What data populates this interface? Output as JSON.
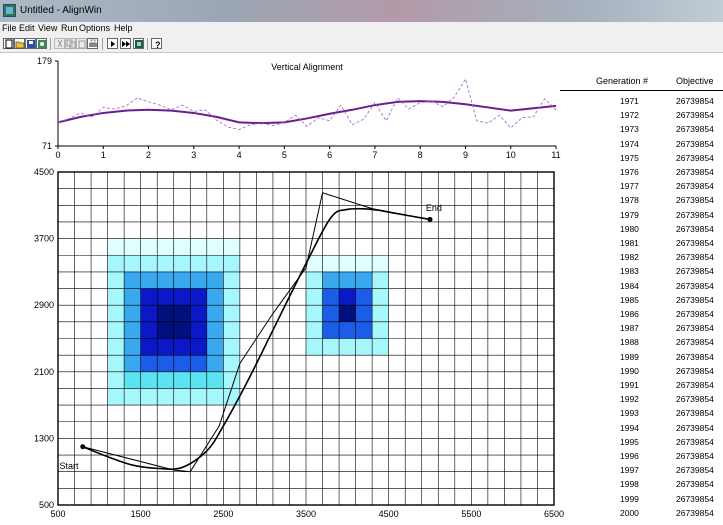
{
  "window": {
    "title": "Untitled - AlignWin"
  },
  "menu": [
    "File",
    "Edit",
    "View",
    "Run",
    "Options",
    "Help"
  ],
  "toolbar": [
    {
      "icon": "new-file-icon",
      "enabled": true
    },
    {
      "icon": "open-folder-icon",
      "enabled": true
    },
    {
      "icon": "save-icon",
      "enabled": true
    },
    {
      "icon": "view-icon",
      "enabled": true
    },
    {
      "icon": "cut-icon",
      "enabled": false
    },
    {
      "icon": "copy-icon",
      "enabled": false
    },
    {
      "icon": "paste-icon",
      "enabled": false
    },
    {
      "icon": "print-icon",
      "enabled": true
    },
    {
      "icon": "run-icon",
      "enabled": true
    },
    {
      "icon": "fast-forward-icon",
      "enabled": true
    },
    {
      "icon": "results-icon",
      "enabled": true
    },
    {
      "icon": "help-icon",
      "enabled": true
    }
  ],
  "chart_data": [
    {
      "type": "line",
      "title": "Vertical Alignment",
      "xlabel": "",
      "ylabel": "",
      "xlim": [
        0,
        11
      ],
      "ylim": [
        71,
        179
      ],
      "xticks": [
        0,
        1,
        2,
        3,
        4,
        5,
        6,
        7,
        8,
        9,
        10,
        11
      ],
      "yticks_labeled": [
        71,
        179
      ],
      "grid": false,
      "series": [
        {
          "style": "solid",
          "color": "#6a1e8c",
          "x": [
            0,
            0.5,
            1,
            1.5,
            2,
            2.5,
            3,
            3.5,
            4,
            4.5,
            5,
            5.5,
            6,
            6.5,
            7,
            7.5,
            8,
            8.5,
            9,
            9.5,
            10,
            10.5,
            11
          ],
          "y": [
            101,
            108,
            113,
            116,
            117,
            116,
            113,
            108,
            101,
            100,
            101,
            106,
            112,
            117,
            123,
            127,
            128,
            127,
            124,
            120,
            116,
            119,
            122
          ]
        },
        {
          "style": "dashed",
          "color": "#a060c8",
          "x": [
            0,
            0.25,
            0.5,
            0.75,
            1,
            1.25,
            1.5,
            1.75,
            2,
            2.25,
            2.5,
            2.75,
            3,
            3.25,
            3.5,
            3.75,
            4,
            4.25,
            4.5,
            4.75,
            5,
            5.25,
            5.5,
            5.75,
            6,
            6.25,
            6.5,
            6.75,
            7,
            7.25,
            7.5,
            7.75,
            8,
            8.25,
            8.5,
            8.75,
            9,
            9.25,
            9.5,
            9.75,
            10,
            10.25,
            10.5,
            10.75,
            11
          ],
          "y": [
            101,
            106,
            113,
            108,
            120,
            118,
            122,
            132,
            127,
            123,
            117,
            123,
            115,
            117,
            104,
            95,
            92,
            98,
            100,
            97,
            101,
            110,
            96,
            107,
            103,
            123,
            98,
            105,
            126,
            103,
            132,
            118,
            126,
            128,
            121,
            133,
            156,
            103,
            100,
            110,
            94,
            107,
            108,
            131,
            117
          ]
        }
      ]
    },
    {
      "type": "heatmap",
      "xlim": [
        500,
        6500
      ],
      "ylim": [
        500,
        4500
      ],
      "xticks": [
        500,
        1500,
        2500,
        3500,
        4500,
        5500,
        6500
      ],
      "yticks": [
        500,
        1300,
        2100,
        2900,
        3700,
        4500
      ],
      "grid": true,
      "grid_cell": 200,
      "colors": [
        "#e0ffff",
        "#a6f7fb",
        "#5ce3f0",
        "#3aa8ee",
        "#1b5de8",
        "#0a18c8",
        "#02107e",
        "#000850"
      ],
      "hotspots": [
        {
          "x": 1900,
          "y": 2650,
          "amplitude": 7.8,
          "radius_x": 900,
          "radius_y": 1000
        },
        {
          "x": 4000,
          "y": 2850,
          "amplitude": 7.3,
          "radius_x": 500,
          "radius_y": 600
        }
      ],
      "labels": [
        {
          "text": "Start",
          "x": 700,
          "y": 1050
        },
        {
          "text": "End",
          "x": 4950,
          "y": 4030
        }
      ],
      "series": [
        {
          "name": "",
          "style": "smooth",
          "color": "#000000",
          "x": [
            800,
            1100,
            1400,
            1700,
            2000,
            2300,
            2500,
            2800,
            3100,
            3500,
            3800,
            4000,
            4300,
            4600,
            5000
          ],
          "y": [
            1200,
            1080,
            980,
            940,
            950,
            1150,
            1450,
            2000,
            2600,
            3400,
            3950,
            4050,
            4050,
            4000,
            3930
          ]
        },
        {
          "name": "",
          "style": "polyline",
          "color": "#000000",
          "x": [
            800,
            1900,
            2100,
            2450,
            2700,
            3100,
            3500,
            3700,
            4300,
            5000
          ],
          "y": [
            1200,
            920,
            900,
            1450,
            2200,
            2800,
            3350,
            4250,
            4060,
            3930
          ]
        }
      ]
    }
  ],
  "table": {
    "headers": {
      "generation": "Generation #",
      "objective": "Objective"
    },
    "rows": [
      {
        "generation": "1971",
        "objective": "26739854"
      },
      {
        "generation": "1972",
        "objective": "26739854"
      },
      {
        "generation": "1973",
        "objective": "26739854"
      },
      {
        "generation": "1974",
        "objective": "26739854"
      },
      {
        "generation": "1975",
        "objective": "26739854"
      },
      {
        "generation": "1976",
        "objective": "26739854"
      },
      {
        "generation": "1977",
        "objective": "26739854"
      },
      {
        "generation": "1978",
        "objective": "26739854"
      },
      {
        "generation": "1979",
        "objective": "26739854"
      },
      {
        "generation": "1980",
        "objective": "26739854"
      },
      {
        "generation": "1981",
        "objective": "26739854"
      },
      {
        "generation": "1982",
        "objective": "26739854"
      },
      {
        "generation": "1983",
        "objective": "26739854"
      },
      {
        "generation": "1984",
        "objective": "26739854"
      },
      {
        "generation": "1985",
        "objective": "26739854"
      },
      {
        "generation": "1986",
        "objective": "26739854"
      },
      {
        "generation": "1987",
        "objective": "26739854"
      },
      {
        "generation": "1988",
        "objective": "26739854"
      },
      {
        "generation": "1989",
        "objective": "26739854"
      },
      {
        "generation": "1990",
        "objective": "26739854"
      },
      {
        "generation": "1991",
        "objective": "26739854"
      },
      {
        "generation": "1992",
        "objective": "26739854"
      },
      {
        "generation": "1993",
        "objective": "26739854"
      },
      {
        "generation": "1994",
        "objective": "26739854"
      },
      {
        "generation": "1995",
        "objective": "26739854"
      },
      {
        "generation": "1996",
        "objective": "26739854"
      },
      {
        "generation": "1997",
        "objective": "26739854"
      },
      {
        "generation": "1998",
        "objective": "26739854"
      },
      {
        "generation": "1999",
        "objective": "26739854"
      },
      {
        "generation": "2000",
        "objective": "26739854"
      }
    ]
  }
}
